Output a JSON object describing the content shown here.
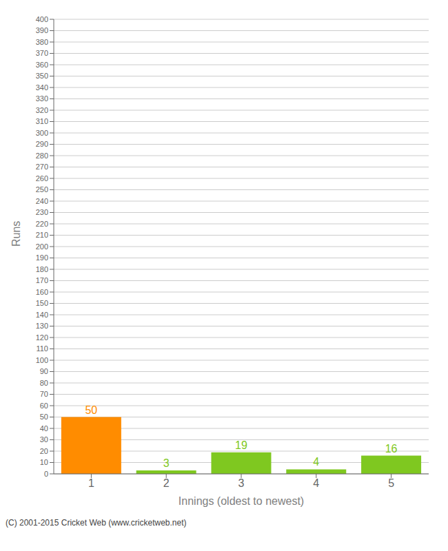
{
  "chart_data": {
    "type": "bar",
    "categories": [
      1,
      2,
      3,
      4,
      5
    ],
    "values": [
      50,
      3,
      19,
      4,
      16
    ],
    "colors": [
      "#ff8c00",
      "#7fc820",
      "#7fc820",
      "#7fc820",
      "#7fc820"
    ],
    "xlabel": "Innings (oldest to newest)",
    "ylabel": "Runs",
    "ylim": [
      0,
      400
    ],
    "yticks": [
      0,
      10,
      20,
      30,
      40,
      50,
      60,
      70,
      80,
      90,
      100,
      110,
      120,
      130,
      140,
      150,
      160,
      170,
      180,
      190,
      200,
      210,
      220,
      230,
      240,
      250,
      260,
      270,
      280,
      290,
      300,
      310,
      320,
      330,
      340,
      350,
      360,
      370,
      380,
      390,
      400
    ],
    "grid": true,
    "data_labels": true,
    "annotations": [
      "(C) 2001-2015 Cricket Web (www.cricketweb.net)"
    ]
  }
}
